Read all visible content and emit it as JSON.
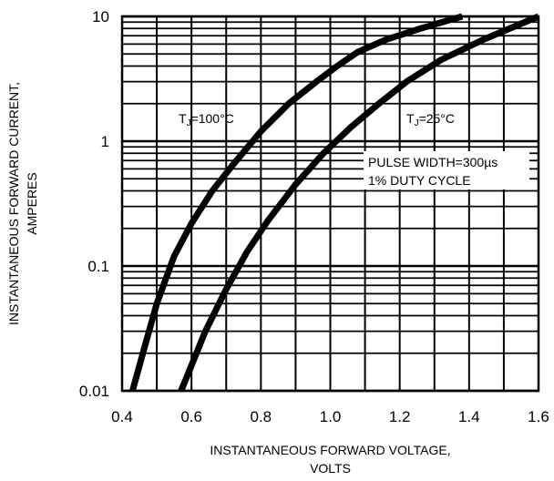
{
  "chart_data": {
    "type": "line",
    "xlabel_lines": [
      "INSTANTANEOUS FORWARD VOLTAGE,",
      "VOLTS"
    ],
    "ylabel_lines": [
      "INSTANTANEOUS FORWARD CURRENT,",
      "AMPERES"
    ],
    "xlim": [
      0.4,
      1.6
    ],
    "ylim": [
      0.01,
      10
    ],
    "yscale": "log",
    "xticks": [
      0.4,
      0.6,
      0.8,
      1.0,
      1.2,
      1.4,
      1.6
    ],
    "xtick_labels": [
      "0.4",
      "0.6",
      "0.8",
      "1.0",
      "1.2",
      "1.4",
      "1.6"
    ],
    "yticks": [
      0.01,
      0.1,
      1,
      10
    ],
    "ytick_labels": [
      "0.01",
      "0.1",
      "1",
      "10"
    ],
    "grid": true,
    "series": [
      {
        "name_main": "T",
        "name_sub": "J",
        "name_rest": "=100°C",
        "x": [
          0.43,
          0.46,
          0.5,
          0.55,
          0.6,
          0.66,
          0.72,
          0.8,
          0.88,
          0.96,
          1.02,
          1.08,
          1.16,
          1.26,
          1.38
        ],
        "y": [
          0.01,
          0.02,
          0.05,
          0.12,
          0.22,
          0.4,
          0.65,
          1.2,
          2.0,
          3.0,
          4.0,
          5.2,
          6.5,
          8.0,
          10
        ]
      },
      {
        "name_main": "T",
        "name_sub": "J",
        "name_rest": "=25°C",
        "x": [
          0.57,
          0.6,
          0.64,
          0.7,
          0.76,
          0.82,
          0.9,
          0.98,
          1.06,
          1.14,
          1.22,
          1.32,
          1.44,
          1.6
        ],
        "y": [
          0.01,
          0.016,
          0.03,
          0.065,
          0.13,
          0.23,
          0.45,
          0.8,
          1.3,
          2.0,
          3.0,
          4.5,
          6.5,
          10
        ]
      }
    ],
    "annotation_lines": [
      "PULSE WIDTH=300µs",
      "1% DUTY CYCLE"
    ]
  }
}
